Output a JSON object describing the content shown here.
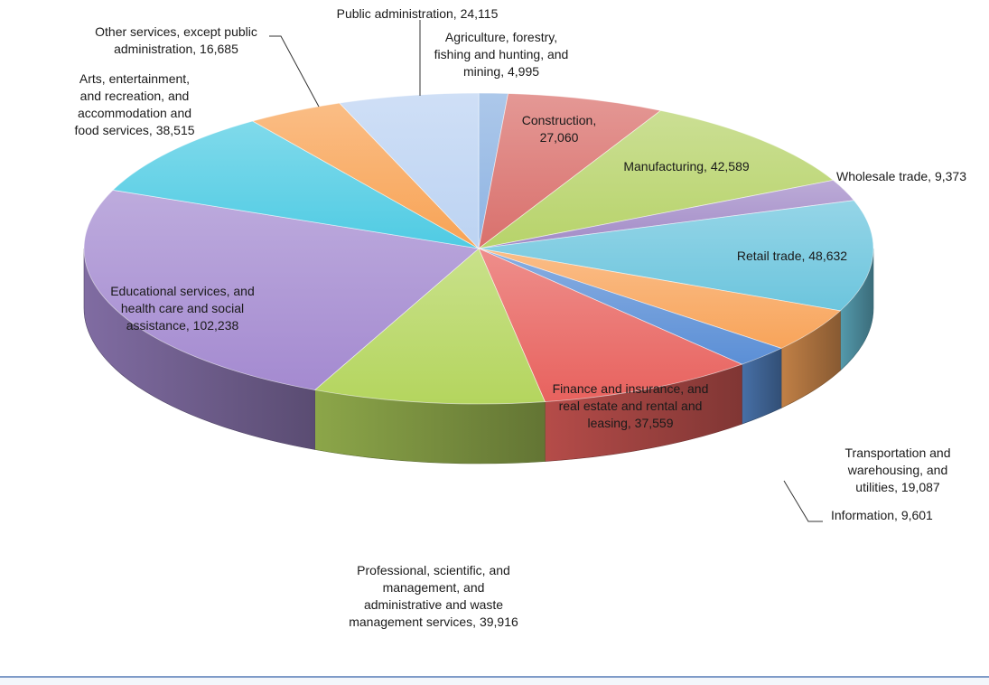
{
  "chart_data": {
    "type": "pie",
    "title": "",
    "style": "3d-exploded-tilted",
    "legend": "none",
    "data_labels": "category-and-value",
    "slices": [
      {
        "label": "Agriculture, forestry, fishing and hunting, and mining",
        "display_value": "4,995",
        "value": 4995,
        "color": "#8db3e2",
        "label_lines": [
          "Agriculture, forestry,",
          "fishing and hunting, and",
          "mining, 4,995"
        ]
      },
      {
        "label": "Construction",
        "display_value": "27,060",
        "value": 27060,
        "color": "#d9706c",
        "label_lines": [
          "Construction,",
          "27,060"
        ]
      },
      {
        "label": "Manufacturing",
        "display_value": "42,589",
        "value": 42589,
        "color": "#b7d36a",
        "label_lines": [
          "Manufacturing, 42,589"
        ]
      },
      {
        "label": "Wholesale trade",
        "display_value": "9,373",
        "value": 9373,
        "color": "#a28bc7",
        "label_lines": [
          "Wholesale trade, 9,373"
        ]
      },
      {
        "label": "Retail trade",
        "display_value": "48,632",
        "value": 48632,
        "color": "#6cc5dd",
        "label_lines": [
          "Retail trade, 48,632"
        ]
      },
      {
        "label": "Transportation and warehousing, and utilities",
        "display_value": "19,087",
        "value": 19087,
        "color": "#f8a45a",
        "label_lines": [
          "Transportation and",
          "warehousing, and",
          "utilities, 19,087"
        ]
      },
      {
        "label": "Information",
        "display_value": "9,601",
        "value": 9601,
        "color": "#5b8fd6",
        "label_lines": [
          "Information, 9,601"
        ]
      },
      {
        "label": "Finance and insurance, and real estate and rental and leasing",
        "display_value": "37,559",
        "value": 37559,
        "color": "#e8625e",
        "label_lines": [
          "Finance and insurance, and",
          "real estate and rental and",
          "leasing, 37,559"
        ]
      },
      {
        "label": "Professional, scientific, and management, and administrative and waste management services",
        "display_value": "39,916",
        "value": 39916,
        "color": "#b4d55e",
        "label_lines": [
          "Professional, scientific, and",
          "management, and",
          "administrative and waste",
          "management services, 39,916"
        ]
      },
      {
        "label": "Educational services, and health care and social assistance",
        "display_value": "102,238",
        "value": 102238,
        "color": "#a48ad0",
        "label_lines": [
          "Educational services, and",
          "health care and social",
          "assistance, 102,238"
        ]
      },
      {
        "label": "Arts, entertainment, and recreation, and accommodation and food services",
        "display_value": "38,515",
        "value": 38515,
        "color": "#4fcbe3",
        "label_lines": [
          "Arts, entertainment,",
          "and recreation, and",
          "accommodation and",
          "food services, 38,515"
        ]
      },
      {
        "label": "Other services, except public administration",
        "display_value": "16,685",
        "value": 16685,
        "color": "#f8a355",
        "label_lines": [
          "Other services, except public",
          "administration, 16,685"
        ]
      },
      {
        "label": "Public administration",
        "display_value": "24,115",
        "value": 24115,
        "color": "#bcd3f2",
        "label_lines": [
          "Public administration, 24,115"
        ]
      }
    ]
  }
}
